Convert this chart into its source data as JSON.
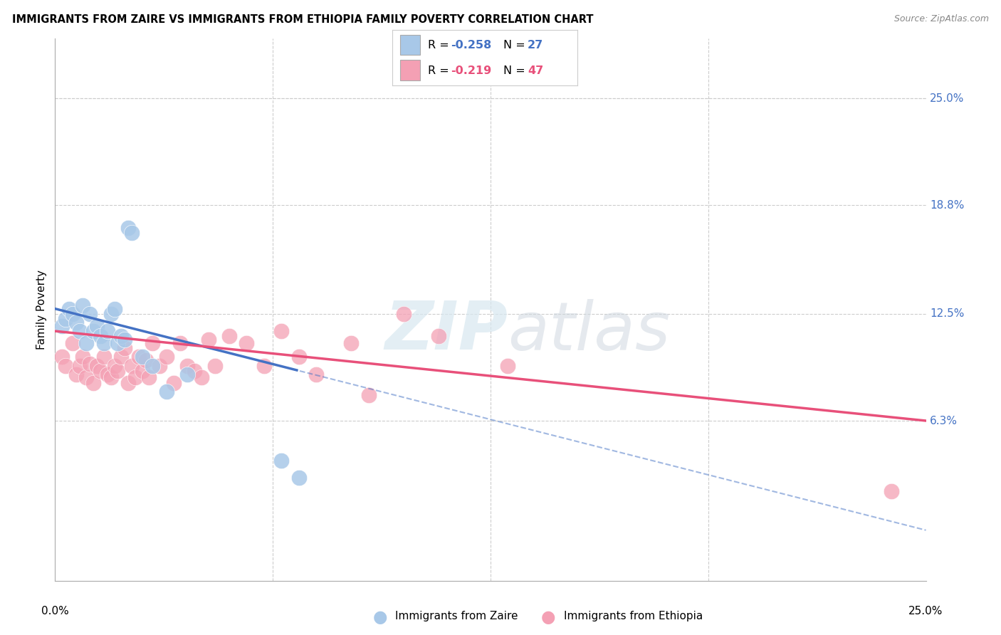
{
  "title": "IMMIGRANTS FROM ZAIRE VS IMMIGRANTS FROM ETHIOPIA FAMILY POVERTY CORRELATION CHART",
  "source": "Source: ZipAtlas.com",
  "ylabel": "Family Poverty",
  "ytick_labels": [
    "6.3%",
    "12.5%",
    "18.8%",
    "25.0%"
  ],
  "ytick_values": [
    0.063,
    0.125,
    0.188,
    0.25
  ],
  "xmin": 0.0,
  "xmax": 0.25,
  "ymin": -0.03,
  "ymax": 0.285,
  "legend_zaire_R": "-0.258",
  "legend_zaire_N": "27",
  "legend_ethiopia_R": "-0.219",
  "legend_ethiopia_N": "47",
  "zaire_color": "#a8c8e8",
  "ethiopia_color": "#f4a0b4",
  "zaire_line_color": "#4472c4",
  "ethiopia_line_color": "#e8507a",
  "zaire_x": [
    0.002,
    0.003,
    0.004,
    0.005,
    0.006,
    0.007,
    0.008,
    0.009,
    0.01,
    0.011,
    0.012,
    0.013,
    0.014,
    0.015,
    0.016,
    0.017,
    0.018,
    0.019,
    0.02,
    0.021,
    0.022,
    0.025,
    0.028,
    0.032,
    0.038,
    0.065,
    0.07
  ],
  "zaire_y": [
    0.118,
    0.122,
    0.128,
    0.125,
    0.12,
    0.115,
    0.13,
    0.108,
    0.125,
    0.115,
    0.118,
    0.112,
    0.108,
    0.115,
    0.125,
    0.128,
    0.108,
    0.112,
    0.11,
    0.175,
    0.172,
    0.1,
    0.095,
    0.08,
    0.09,
    0.04,
    0.03
  ],
  "ethiopia_x": [
    0.002,
    0.003,
    0.005,
    0.006,
    0.007,
    0.008,
    0.009,
    0.01,
    0.011,
    0.012,
    0.013,
    0.014,
    0.015,
    0.016,
    0.017,
    0.018,
    0.019,
    0.02,
    0.021,
    0.022,
    0.023,
    0.024,
    0.025,
    0.026,
    0.027,
    0.028,
    0.03,
    0.032,
    0.034,
    0.036,
    0.038,
    0.04,
    0.042,
    0.044,
    0.046,
    0.05,
    0.055,
    0.06,
    0.065,
    0.07,
    0.075,
    0.085,
    0.09,
    0.1,
    0.11,
    0.13,
    0.24
  ],
  "ethiopia_y": [
    0.1,
    0.095,
    0.108,
    0.09,
    0.095,
    0.1,
    0.088,
    0.096,
    0.085,
    0.095,
    0.092,
    0.1,
    0.09,
    0.088,
    0.095,
    0.092,
    0.1,
    0.105,
    0.085,
    0.095,
    0.088,
    0.1,
    0.092,
    0.098,
    0.088,
    0.108,
    0.095,
    0.1,
    0.085,
    0.108,
    0.095,
    0.092,
    0.088,
    0.11,
    0.095,
    0.112,
    0.108,
    0.095,
    0.115,
    0.1,
    0.09,
    0.108,
    0.078,
    0.125,
    0.112,
    0.095,
    0.022
  ],
  "watermark_zip": "ZIP",
  "watermark_atlas": "atlas"
}
